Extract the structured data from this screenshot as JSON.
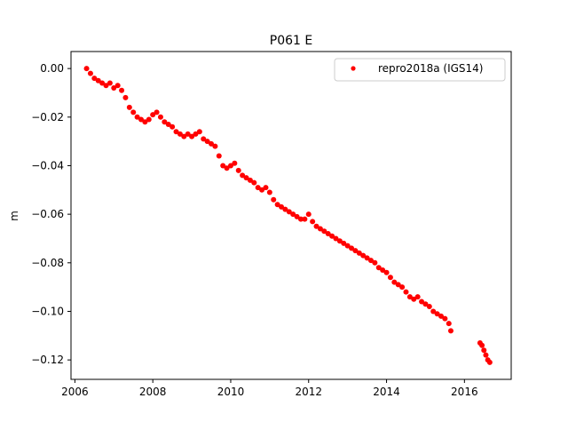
{
  "chart_data": {
    "type": "scatter",
    "title": "P061 E",
    "xlabel": "",
    "ylabel": "m",
    "xlim": [
      2005.9,
      2017.2
    ],
    "ylim": [
      -0.128,
      0.007
    ],
    "x_ticks": [
      2006,
      2008,
      2010,
      2012,
      2014,
      2016
    ],
    "x_tick_labels": [
      "2006",
      "2008",
      "2010",
      "2012",
      "2014",
      "2016"
    ],
    "y_ticks": [
      0.0,
      -0.02,
      -0.04,
      -0.06,
      -0.08,
      -0.1,
      -0.12
    ],
    "y_tick_labels": [
      "0.00",
      "−0.02",
      "−0.04",
      "−0.06",
      "−0.08",
      "−0.10",
      "−0.12"
    ],
    "grid": false,
    "legend_position": "top-right",
    "marker": "circle",
    "series": [
      {
        "name": "repro2018a (IGS14)",
        "color": "#ff0000",
        "points": [
          [
            2006.3,
            0.0
          ],
          [
            2006.4,
            -0.002
          ],
          [
            2006.5,
            -0.004
          ],
          [
            2006.6,
            -0.005
          ],
          [
            2006.7,
            -0.006
          ],
          [
            2006.8,
            -0.007
          ],
          [
            2006.9,
            -0.006
          ],
          [
            2007.0,
            -0.008
          ],
          [
            2007.1,
            -0.007
          ],
          [
            2007.2,
            -0.009
          ],
          [
            2007.3,
            -0.012
          ],
          [
            2007.4,
            -0.016
          ],
          [
            2007.5,
            -0.018
          ],
          [
            2007.6,
            -0.02
          ],
          [
            2007.7,
            -0.021
          ],
          [
            2007.8,
            -0.022
          ],
          [
            2007.9,
            -0.021
          ],
          [
            2008.0,
            -0.019
          ],
          [
            2008.1,
            -0.018
          ],
          [
            2008.2,
            -0.02
          ],
          [
            2008.3,
            -0.022
          ],
          [
            2008.4,
            -0.023
          ],
          [
            2008.5,
            -0.024
          ],
          [
            2008.6,
            -0.026
          ],
          [
            2008.7,
            -0.027
          ],
          [
            2008.8,
            -0.028
          ],
          [
            2008.9,
            -0.027
          ],
          [
            2009.0,
            -0.028
          ],
          [
            2009.1,
            -0.027
          ],
          [
            2009.2,
            -0.026
          ],
          [
            2009.3,
            -0.029
          ],
          [
            2009.4,
            -0.03
          ],
          [
            2009.5,
            -0.031
          ],
          [
            2009.6,
            -0.032
          ],
          [
            2009.7,
            -0.036
          ],
          [
            2009.8,
            -0.04
          ],
          [
            2009.9,
            -0.041
          ],
          [
            2010.0,
            -0.04
          ],
          [
            2010.1,
            -0.039
          ],
          [
            2010.2,
            -0.042
          ],
          [
            2010.3,
            -0.044
          ],
          [
            2010.4,
            -0.045
          ],
          [
            2010.5,
            -0.046
          ],
          [
            2010.6,
            -0.047
          ],
          [
            2010.7,
            -0.049
          ],
          [
            2010.8,
            -0.05
          ],
          [
            2010.9,
            -0.049
          ],
          [
            2011.0,
            -0.051
          ],
          [
            2011.1,
            -0.054
          ],
          [
            2011.2,
            -0.056
          ],
          [
            2011.3,
            -0.057
          ],
          [
            2011.4,
            -0.058
          ],
          [
            2011.5,
            -0.059
          ],
          [
            2011.6,
            -0.06
          ],
          [
            2011.7,
            -0.061
          ],
          [
            2011.8,
            -0.062
          ],
          [
            2011.9,
            -0.062
          ],
          [
            2012.0,
            -0.06
          ],
          [
            2012.1,
            -0.063
          ],
          [
            2012.2,
            -0.065
          ],
          [
            2012.3,
            -0.066
          ],
          [
            2012.4,
            -0.067
          ],
          [
            2012.5,
            -0.068
          ],
          [
            2012.6,
            -0.069
          ],
          [
            2012.7,
            -0.07
          ],
          [
            2012.8,
            -0.071
          ],
          [
            2012.9,
            -0.072
          ],
          [
            2013.0,
            -0.073
          ],
          [
            2013.1,
            -0.074
          ],
          [
            2013.2,
            -0.075
          ],
          [
            2013.3,
            -0.076
          ],
          [
            2013.4,
            -0.077
          ],
          [
            2013.5,
            -0.078
          ],
          [
            2013.6,
            -0.079
          ],
          [
            2013.7,
            -0.08
          ],
          [
            2013.8,
            -0.082
          ],
          [
            2013.9,
            -0.083
          ],
          [
            2014.0,
            -0.084
          ],
          [
            2014.1,
            -0.086
          ],
          [
            2014.2,
            -0.088
          ],
          [
            2014.3,
            -0.089
          ],
          [
            2014.4,
            -0.09
          ],
          [
            2014.5,
            -0.092
          ],
          [
            2014.6,
            -0.094
          ],
          [
            2014.7,
            -0.095
          ],
          [
            2014.8,
            -0.094
          ],
          [
            2014.9,
            -0.096
          ],
          [
            2015.0,
            -0.097
          ],
          [
            2015.1,
            -0.098
          ],
          [
            2015.2,
            -0.1
          ],
          [
            2015.3,
            -0.101
          ],
          [
            2015.4,
            -0.102
          ],
          [
            2015.5,
            -0.103
          ],
          [
            2015.6,
            -0.105
          ],
          [
            2015.65,
            -0.108
          ],
          [
            2016.4,
            -0.113
          ],
          [
            2016.45,
            -0.114
          ],
          [
            2016.5,
            -0.116
          ],
          [
            2016.55,
            -0.118
          ],
          [
            2016.6,
            -0.12
          ],
          [
            2016.65,
            -0.121
          ]
        ]
      }
    ]
  }
}
